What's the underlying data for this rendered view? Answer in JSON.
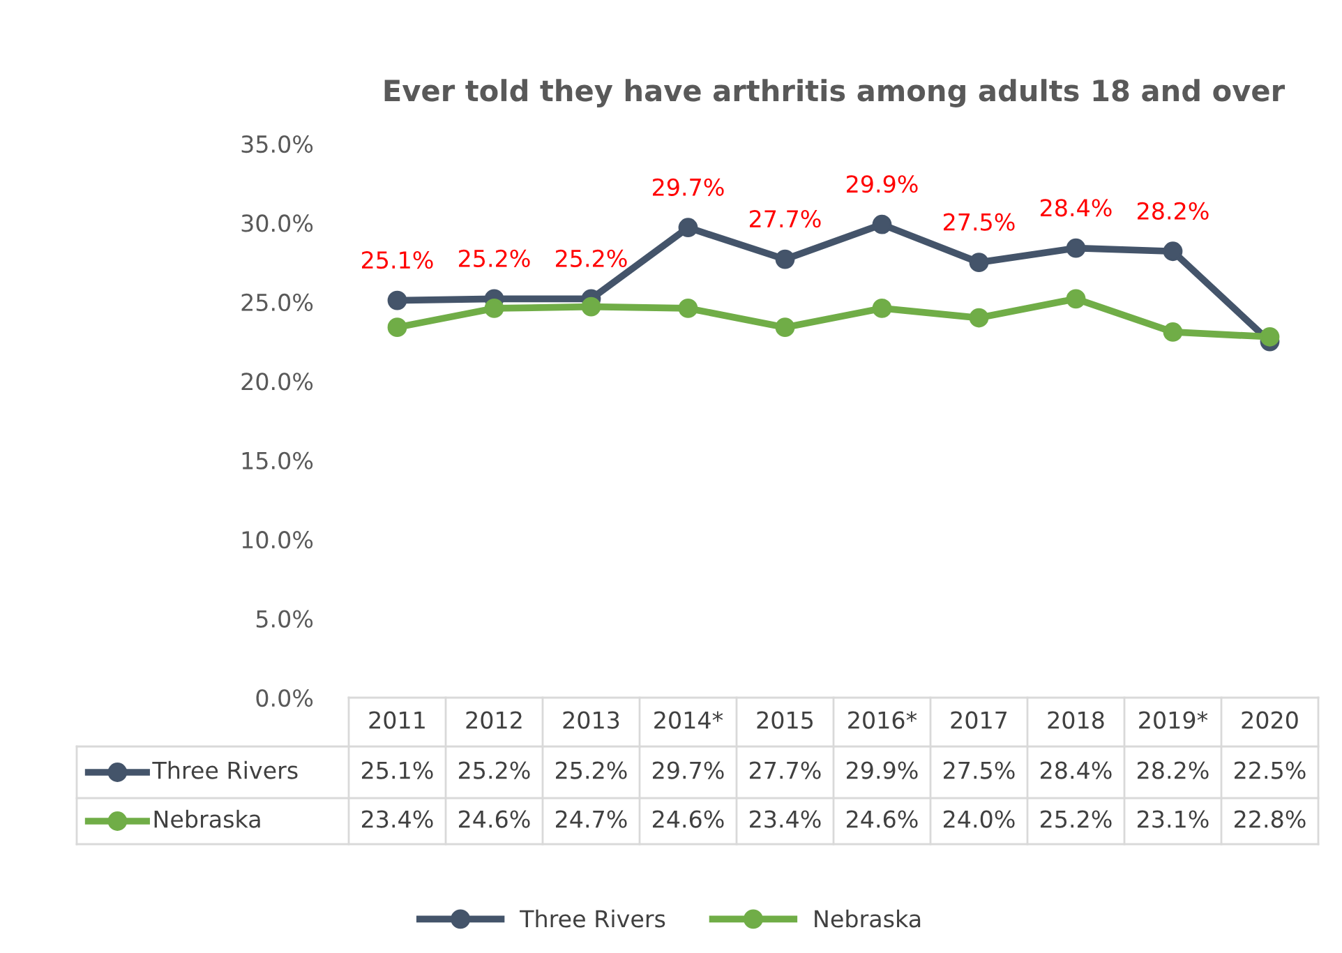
{
  "chart_data": {
    "type": "line",
    "title": "Ever told they have arthritis among adults 18 and over",
    "categories": [
      "2011",
      "2012",
      "2013",
      "2014*",
      "2015",
      "2016*",
      "2017",
      "2018",
      "2019*",
      "2020"
    ],
    "series": [
      {
        "name": "Three Rivers",
        "color": "#44546a",
        "values": [
          25.1,
          25.2,
          25.2,
          29.7,
          27.7,
          29.9,
          27.5,
          28.4,
          28.2,
          22.5
        ],
        "value_labels": [
          "25.1%",
          "25.2%",
          "25.2%",
          "29.7%",
          "27.7%",
          "29.9%",
          "27.5%",
          "28.4%",
          "28.2%",
          "22.5%"
        ]
      },
      {
        "name": "Nebraska",
        "color": "#70ad47",
        "values": [
          23.4,
          24.6,
          24.7,
          24.6,
          23.4,
          24.6,
          24.0,
          25.2,
          23.1,
          22.8
        ],
        "value_labels": [
          "23.4%",
          "24.6%",
          "24.7%",
          "24.6%",
          "23.4%",
          "24.6%",
          "24.0%",
          "25.2%",
          "23.1%",
          "22.8%"
        ]
      }
    ],
    "annotations": [
      {
        "text": "25.1%",
        "x": "2011",
        "y": 25.1
      },
      {
        "text": "25.2%",
        "x": "2012",
        "y": 25.2
      },
      {
        "text": "25.2%",
        "x": "2013",
        "y": 25.2
      },
      {
        "text": "29.7%",
        "x": "2014*",
        "y": 29.7
      },
      {
        "text": "27.7%",
        "x": "2015",
        "y": 27.7
      },
      {
        "text": "29.9%",
        "x": "2016*",
        "y": 29.9
      },
      {
        "text": "27.5%",
        "x": "2017",
        "y": 27.5
      },
      {
        "text": "28.4%",
        "x": "2018",
        "y": 28.4
      },
      {
        "text": "28.2%",
        "x": "2019*",
        "y": 28.2
      }
    ],
    "ylim": [
      0,
      35
    ],
    "yticks": [
      {
        "value": 0,
        "label": "0.0%"
      },
      {
        "value": 5,
        "label": "5.0%"
      },
      {
        "value": 10,
        "label": "10.0%"
      },
      {
        "value": 15,
        "label": "15.0%"
      },
      {
        "value": 20,
        "label": "20.0%"
      },
      {
        "value": 25,
        "label": "25.0%"
      },
      {
        "value": 30,
        "label": "30.0%"
      },
      {
        "value": 35,
        "label": "35.0%"
      }
    ],
    "grid": false,
    "legend": "bottom",
    "marker": "circle",
    "line_style": "solid"
  }
}
